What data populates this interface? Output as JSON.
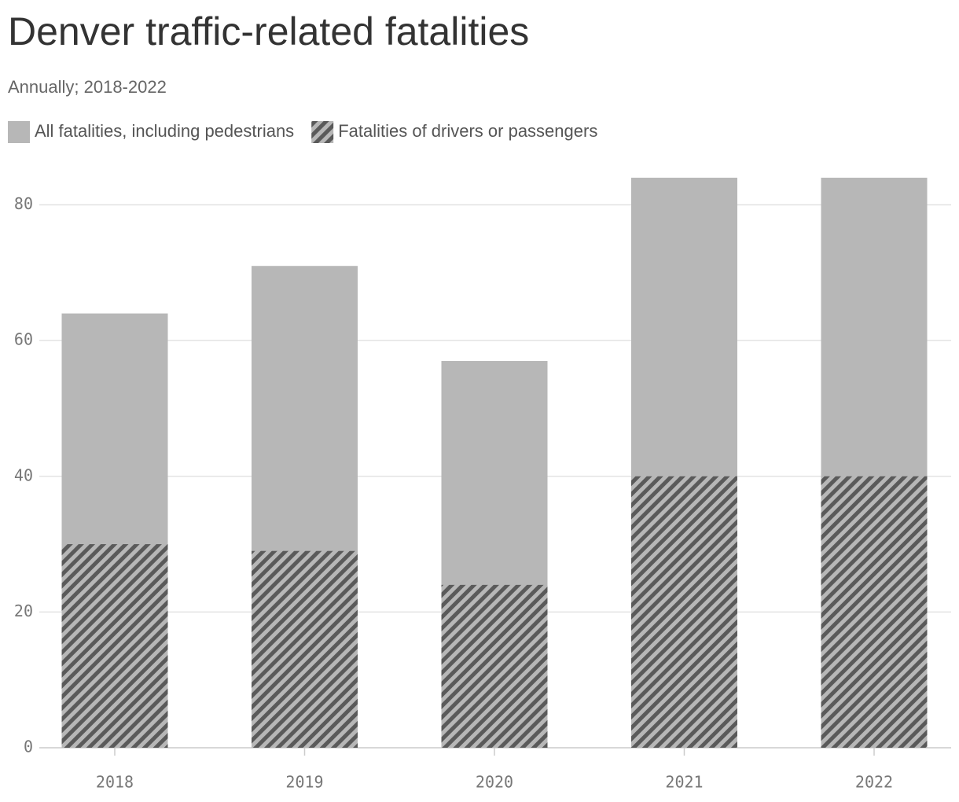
{
  "chart_data": {
    "type": "bar",
    "title": "Denver traffic-related fatalities",
    "subtitle": "Annually; 2018-2022",
    "categories": [
      "2018",
      "2019",
      "2020",
      "2021",
      "2022"
    ],
    "series": [
      {
        "name": "All fatalities, including pedestrians",
        "color": "#b7b7b7",
        "values": [
          64,
          71,
          57,
          84,
          84
        ]
      },
      {
        "name": "Fatalities of drivers or passengers",
        "color": "#5a5a5a",
        "values": [
          30,
          29,
          24,
          40,
          40
        ]
      }
    ],
    "ylim": [
      0,
      84
    ],
    "yticks": [
      0,
      20,
      40,
      60,
      80
    ],
    "grid": true
  }
}
